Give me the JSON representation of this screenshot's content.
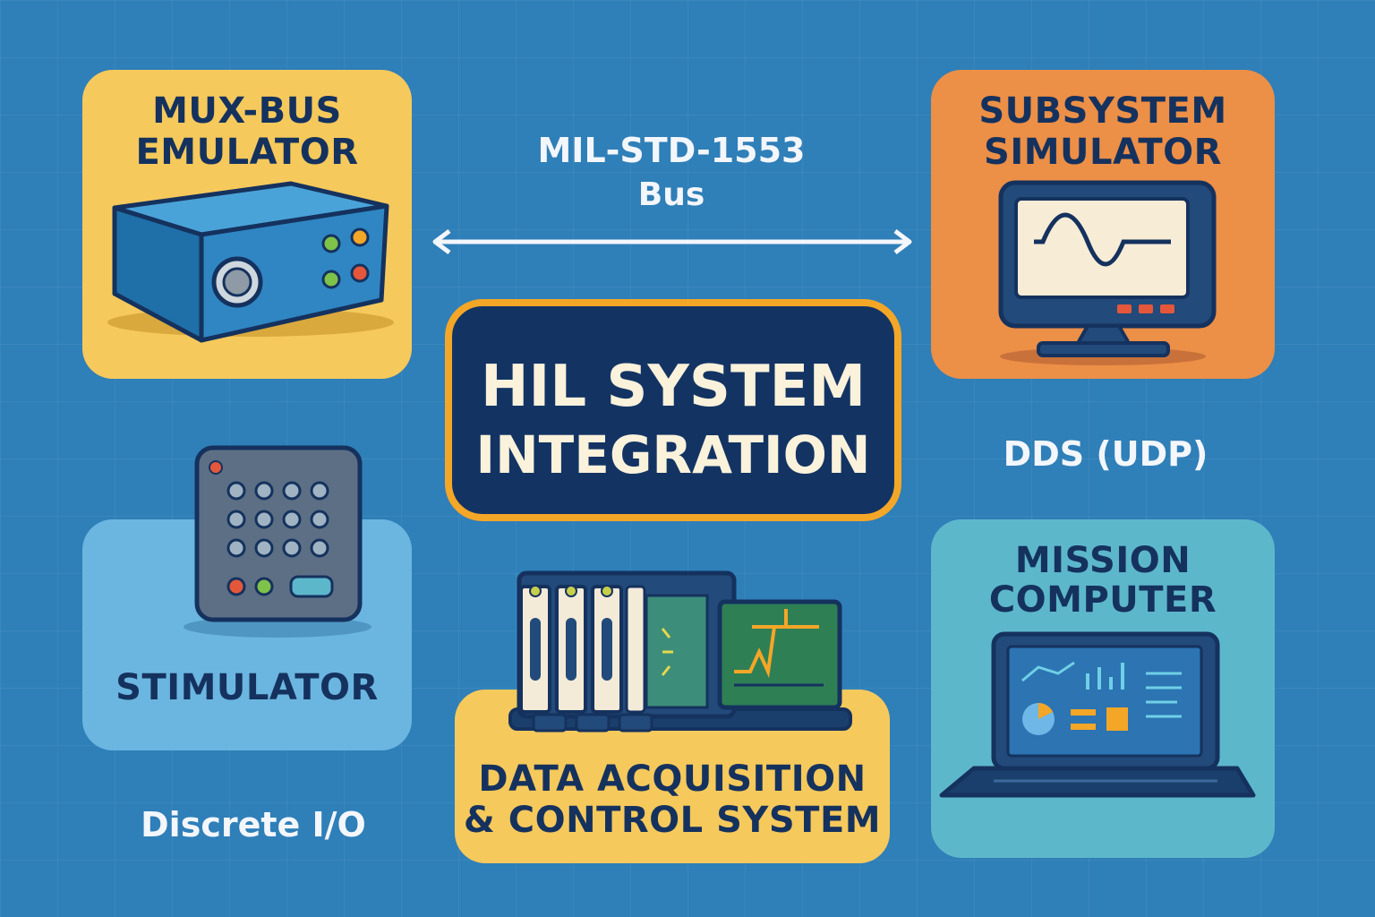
{
  "colors": {
    "background": "#2f7fb8",
    "yellow_card": "#f6c95c",
    "orange_card": "#ec8f47",
    "light_blue_card": "#6bb6e0",
    "teal_card": "#5db7cb",
    "center_box": "#133463",
    "center_border": "#f4a627",
    "dark_text": "#15325e",
    "light_text": "#f3f6fb"
  },
  "center": {
    "line1": "HIL SYSTEM",
    "line2": "INTEGRATION"
  },
  "nodes": {
    "mux_bus": {
      "line1": "MUX-BUS",
      "line2": "EMULATOR",
      "icon": "bus-emulator-device-icon"
    },
    "subsystem": {
      "line1": "SUBSYSTEM",
      "line2": "SIMULATOR",
      "icon": "monitor-waveform-icon"
    },
    "stimulator": {
      "label": "STIMULATOR",
      "icon": "stimulator-panel-icon"
    },
    "daq": {
      "line1": "DATA ACQUISITION",
      "line2": "& CONTROL SYSTEM",
      "icon": "pxi-chassis-icon"
    },
    "mission": {
      "line1": "MISSION",
      "line2": "COMPUTER",
      "icon": "laptop-dashboard-icon"
    }
  },
  "connections": {
    "bus": {
      "line1": "MIL-STD-1553",
      "line2": "Bus"
    },
    "dds": "DDS (UDP)",
    "discrete": "Discrete I/O"
  }
}
